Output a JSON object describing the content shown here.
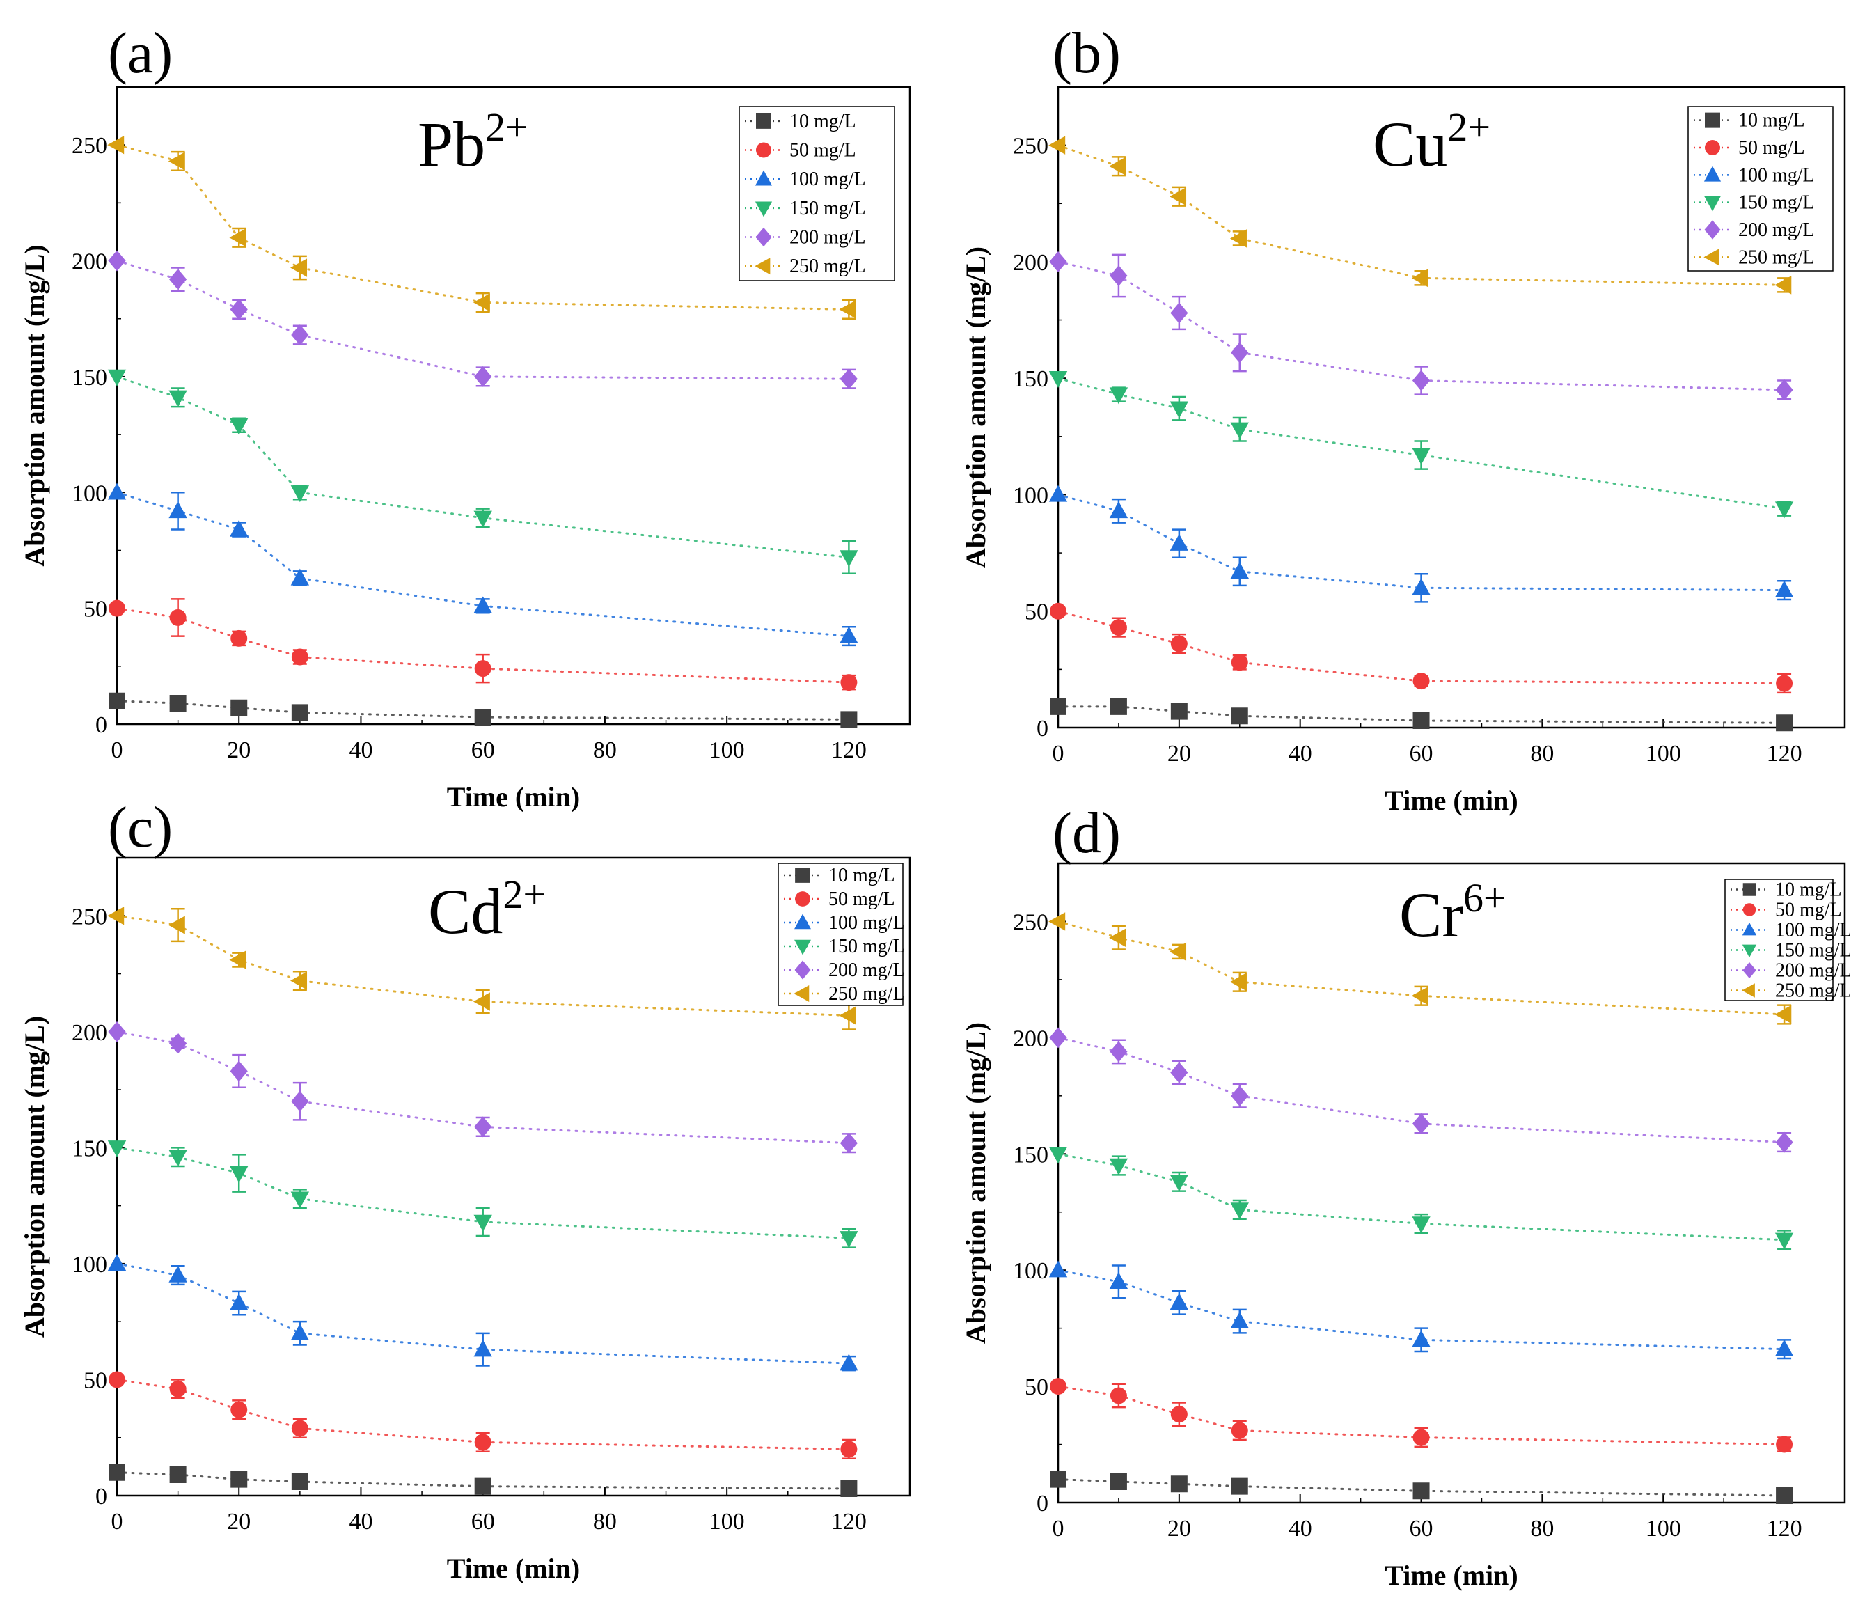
{
  "figure": {
    "panels": [
      {
        "letter": "(a)",
        "ion_base": "Pb",
        "ion_sup": "2+"
      },
      {
        "letter": "(b)",
        "ion_base": "Cu",
        "ion_sup": "2+"
      },
      {
        "letter": "(c)",
        "ion_base": "Cd",
        "ion_sup": "2+"
      },
      {
        "letter": "(d)",
        "ion_base": "Cr",
        "ion_sup": "6+"
      }
    ]
  },
  "chart_data": [
    {
      "type": "line",
      "title": "Pb2+",
      "xlabel": "Time (min)",
      "ylabel": "Absorption amount (mg/L)",
      "xlim": [
        0,
        130
      ],
      "ylim": [
        0,
        275
      ],
      "xticks": [
        0,
        20,
        40,
        60,
        80,
        100,
        120
      ],
      "yticks": [
        0,
        50,
        100,
        150,
        200,
        250
      ],
      "legend_position": "top-right",
      "x": [
        0,
        10,
        20,
        30,
        60,
        120
      ],
      "series": [
        {
          "name": "10 mg/L",
          "color": "#404040",
          "marker": "square",
          "values": [
            10,
            9,
            7,
            5,
            3,
            2
          ],
          "errors": [
            1,
            1,
            1,
            1,
            1,
            1
          ]
        },
        {
          "name": "50 mg/L",
          "color": "#ef3a3a",
          "marker": "circle",
          "values": [
            50,
            46,
            37,
            29,
            24,
            18
          ],
          "errors": [
            1,
            8,
            3,
            3,
            6,
            3
          ]
        },
        {
          "name": "100 mg/L",
          "color": "#1f6fdc",
          "marker": "triangle-up",
          "values": [
            100,
            92,
            84,
            63,
            51,
            38
          ],
          "errors": [
            1,
            8,
            3,
            3,
            3,
            4
          ]
        },
        {
          "name": "150 mg/L",
          "color": "#2bb673",
          "marker": "triangle-down",
          "values": [
            150,
            141,
            129,
            100,
            89,
            72
          ],
          "errors": [
            1,
            4,
            3,
            3,
            4,
            7
          ]
        },
        {
          "name": "200 mg/L",
          "color": "#a066e0",
          "marker": "diamond",
          "values": [
            200,
            192,
            179,
            168,
            150,
            149
          ],
          "errors": [
            1,
            5,
            4,
            4,
            4,
            4
          ]
        },
        {
          "name": "250 mg/L",
          "color": "#d9a010",
          "marker": "triangle-left",
          "values": [
            250,
            243,
            210,
            197,
            182,
            179
          ],
          "errors": [
            1,
            4,
            4,
            5,
            4,
            4
          ]
        }
      ]
    },
    {
      "type": "line",
      "title": "Cu2+",
      "xlabel": "Time (min)",
      "ylabel": "Absorption amount (mg/L)",
      "xlim": [
        0,
        130
      ],
      "ylim": [
        0,
        275
      ],
      "xticks": [
        0,
        20,
        40,
        60,
        80,
        100,
        120
      ],
      "yticks": [
        0,
        50,
        100,
        150,
        200,
        250
      ],
      "legend_position": "top-right",
      "x": [
        0,
        10,
        20,
        30,
        60,
        120
      ],
      "series": [
        {
          "name": "10 mg/L",
          "color": "#404040",
          "marker": "square",
          "values": [
            9,
            9,
            7,
            5,
            3,
            2
          ],
          "errors": [
            1,
            1,
            1,
            1,
            1,
            1
          ]
        },
        {
          "name": "50 mg/L",
          "color": "#ef3a3a",
          "marker": "circle",
          "values": [
            50,
            43,
            36,
            28,
            20,
            19
          ],
          "errors": [
            1,
            4,
            4,
            3,
            2,
            4
          ]
        },
        {
          "name": "100 mg/L",
          "color": "#1f6fdc",
          "marker": "triangle-up",
          "values": [
            100,
            93,
            79,
            67,
            60,
            59
          ],
          "errors": [
            1,
            5,
            6,
            6,
            6,
            4
          ]
        },
        {
          "name": "150 mg/L",
          "color": "#2bb673",
          "marker": "triangle-down",
          "values": [
            150,
            143,
            137,
            128,
            117,
            94
          ],
          "errors": [
            1,
            3,
            5,
            5,
            6,
            3
          ]
        },
        {
          "name": "200 mg/L",
          "color": "#a066e0",
          "marker": "diamond",
          "values": [
            200,
            194,
            178,
            161,
            149,
            145
          ],
          "errors": [
            1,
            9,
            7,
            8,
            6,
            4
          ]
        },
        {
          "name": "250 mg/L",
          "color": "#d9a010",
          "marker": "triangle-left",
          "values": [
            250,
            241,
            228,
            210,
            193,
            190
          ],
          "errors": [
            1,
            4,
            4,
            3,
            3,
            3
          ]
        }
      ]
    },
    {
      "type": "line",
      "title": "Cd2+",
      "xlabel": "Time (min)",
      "ylabel": "Absorption amount (mg/L)",
      "xlim": [
        0,
        130
      ],
      "ylim": [
        0,
        275
      ],
      "xticks": [
        0,
        20,
        40,
        60,
        80,
        100,
        120
      ],
      "yticks": [
        0,
        50,
        100,
        150,
        200,
        250
      ],
      "legend_position": "top-right",
      "x": [
        0,
        10,
        20,
        30,
        60,
        120
      ],
      "series": [
        {
          "name": "10 mg/L",
          "color": "#404040",
          "marker": "square",
          "values": [
            10,
            9,
            7,
            6,
            4,
            3
          ],
          "errors": [
            1,
            1,
            1,
            1,
            1,
            1
          ]
        },
        {
          "name": "50 mg/L",
          "color": "#ef3a3a",
          "marker": "circle",
          "values": [
            50,
            46,
            37,
            29,
            23,
            20
          ],
          "errors": [
            1,
            4,
            4,
            4,
            4,
            4
          ]
        },
        {
          "name": "100 mg/L",
          "color": "#1f6fdc",
          "marker": "triangle-up",
          "values": [
            100,
            95,
            83,
            70,
            63,
            57
          ],
          "errors": [
            1,
            4,
            5,
            5,
            7,
            3
          ]
        },
        {
          "name": "150 mg/L",
          "color": "#2bb673",
          "marker": "triangle-down",
          "values": [
            150,
            146,
            139,
            128,
            118,
            111
          ],
          "errors": [
            1,
            4,
            8,
            4,
            6,
            4
          ]
        },
        {
          "name": "200 mg/L",
          "color": "#a066e0",
          "marker": "diamond",
          "values": [
            200,
            195,
            183,
            170,
            159,
            152
          ],
          "errors": [
            1,
            2,
            7,
            8,
            4,
            4
          ]
        },
        {
          "name": "250 mg/L",
          "color": "#d9a010",
          "marker": "triangle-left",
          "values": [
            250,
            246,
            231,
            222,
            213,
            207
          ],
          "errors": [
            1,
            7,
            3,
            4,
            5,
            6
          ]
        }
      ]
    },
    {
      "type": "line",
      "title": "Cr6+",
      "xlabel": "Time (min)",
      "ylabel": "Absorption amount (mg/L)",
      "xlim": [
        0,
        130
      ],
      "ylim": [
        0,
        275
      ],
      "xticks": [
        0,
        20,
        40,
        60,
        80,
        100,
        120
      ],
      "yticks": [
        0,
        50,
        100,
        150,
        200,
        250
      ],
      "legend_position": "top-right",
      "x": [
        0,
        10,
        20,
        30,
        60,
        120
      ],
      "series": [
        {
          "name": "10 mg/L",
          "color": "#404040",
          "marker": "square",
          "values": [
            10,
            9,
            8,
            7,
            5,
            3
          ],
          "errors": [
            1,
            1,
            1,
            1,
            1,
            1
          ]
        },
        {
          "name": "50 mg/L",
          "color": "#ef3a3a",
          "marker": "circle",
          "values": [
            50,
            46,
            38,
            31,
            28,
            25
          ],
          "errors": [
            1,
            5,
            5,
            4,
            4,
            3
          ]
        },
        {
          "name": "100 mg/L",
          "color": "#1f6fdc",
          "marker": "triangle-up",
          "values": [
            100,
            95,
            86,
            78,
            70,
            66
          ],
          "errors": [
            1,
            7,
            5,
            5,
            5,
            4
          ]
        },
        {
          "name": "150 mg/L",
          "color": "#2bb673",
          "marker": "triangle-down",
          "values": [
            150,
            145,
            138,
            126,
            120,
            113
          ],
          "errors": [
            1,
            4,
            4,
            4,
            4,
            4
          ]
        },
        {
          "name": "200 mg/L",
          "color": "#a066e0",
          "marker": "diamond",
          "values": [
            200,
            194,
            185,
            175,
            163,
            155
          ],
          "errors": [
            1,
            5,
            5,
            5,
            4,
            4
          ]
        },
        {
          "name": "250 mg/L",
          "color": "#d9a010",
          "marker": "triangle-left",
          "values": [
            250,
            243,
            237,
            224,
            218,
            210
          ],
          "errors": [
            1,
            5,
            3,
            4,
            4,
            4
          ]
        }
      ]
    }
  ]
}
